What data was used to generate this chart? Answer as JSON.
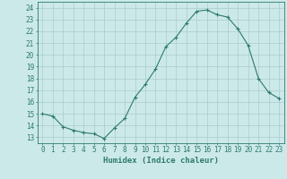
{
  "x": [
    0,
    1,
    2,
    3,
    4,
    5,
    6,
    7,
    8,
    9,
    10,
    11,
    12,
    13,
    14,
    15,
    16,
    17,
    18,
    19,
    20,
    21,
    22,
    23
  ],
  "y": [
    15.0,
    14.8,
    13.9,
    13.6,
    13.4,
    13.3,
    12.9,
    13.8,
    14.6,
    16.4,
    17.5,
    18.8,
    20.7,
    21.5,
    22.7,
    23.7,
    23.8,
    23.4,
    23.2,
    22.2,
    20.8,
    18.0,
    16.8,
    16.3
  ],
  "xlim": [
    -0.5,
    23.5
  ],
  "ylim": [
    12.5,
    24.5
  ],
  "yticks": [
    13,
    14,
    15,
    16,
    17,
    18,
    19,
    20,
    21,
    22,
    23,
    24
  ],
  "xticks": [
    0,
    1,
    2,
    3,
    4,
    5,
    6,
    7,
    8,
    9,
    10,
    11,
    12,
    13,
    14,
    15,
    16,
    17,
    18,
    19,
    20,
    21,
    22,
    23
  ],
  "xlabel": "Humidex (Indice chaleur)",
  "line_color": "#2d7a6e",
  "marker": "+",
  "marker_size": 3.5,
  "bg_color": "#cce9e9",
  "grid_color": "#aacccc",
  "axes_color": "#2d7a6e",
  "label_color": "#2d7a6e",
  "tick_color": "#2d7a6e",
  "xlabel_fontsize": 6.5,
  "tick_fontsize": 5.5
}
